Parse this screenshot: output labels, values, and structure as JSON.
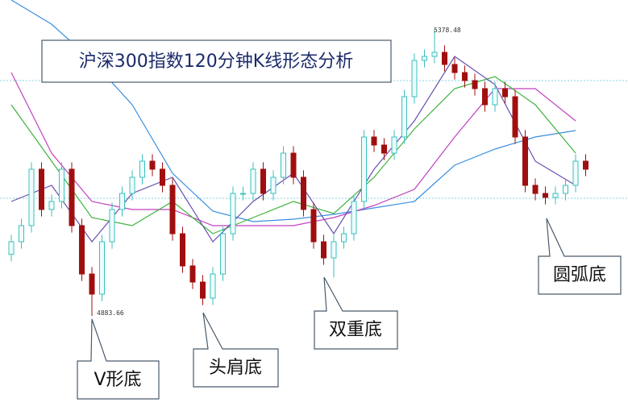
{
  "chart_data": {
    "type": "candlestick",
    "title": "沪深300指数120分钟K线形态分析",
    "ylim": [
      4712.2,
      5430.1
    ],
    "up_color": "#3bbfbf",
    "down_color": "#a00f0f",
    "open": [
      4990.0,
      5011.9,
      5039.8,
      5137.4,
      5067.7,
      5081.6,
      5137.4,
      5039.8,
      4956.1,
      4921.3,
      5011.9,
      5067.7,
      5095.5,
      5123.4,
      5151.3,
      5137.4,
      5109.5,
      5025.8,
      4970.1,
      4942.2,
      4914.3,
      4956.1,
      5025.8,
      5095.5,
      5095.5,
      5137.4,
      5095.5,
      5123.4,
      5165.2,
      5123.4,
      5067.7,
      5011.9,
      4984.0,
      5011.9,
      5025.8,
      5081.6,
      5193.1,
      5179.2,
      5165.2,
      5193.1,
      5262.8,
      5325.5,
      5332.5,
      5339.5,
      5318.6,
      5304.6,
      5290.7,
      5276.8,
      5248.9,
      5276.8,
      5262.8,
      5193.1,
      5109.5,
      5095.5,
      5088.6,
      5095.5,
      5109.5,
      5151.3
    ],
    "high": [
      5023.9,
      5051.8,
      5149.4,
      5149.4,
      5093.6,
      5149.4,
      5149.4,
      5051.8,
      4968.1,
      5023.9,
      5079.7,
      5107.5,
      5135.4,
      5163.3,
      5163.3,
      5149.4,
      5121.5,
      5037.8,
      4982.1,
      4954.2,
      4968.1,
      5037.8,
      5107.5,
      5107.5,
      5149.4,
      5149.4,
      5135.4,
      5177.2,
      5177.2,
      5135.4,
      5079.7,
      5023.9,
      5023.9,
      5037.8,
      5093.6,
      5205.1,
      5205.1,
      5191.2,
      5205.1,
      5274.8,
      5337.5,
      5344.5,
      5378.48,
      5351.5,
      5330.6,
      5316.6,
      5302.7,
      5288.8,
      5288.8,
      5288.8,
      5274.8,
      5205.1,
      5121.5,
      5107.5,
      5107.5,
      5121.5,
      5163.3,
      5163.3
    ],
    "low": [
      4978.0,
      4999.9,
      5027.8,
      5055.7,
      5055.7,
      5069.6,
      5027.8,
      4944.1,
      4883.66,
      4909.3,
      4999.9,
      5055.7,
      5083.5,
      5111.4,
      5125.4,
      5097.5,
      5013.8,
      4958.1,
      4930.2,
      4902.3,
      4902.3,
      4944.1,
      5013.8,
      5083.5,
      5083.5,
      5083.5,
      5083.5,
      5111.4,
      5111.4,
      5055.7,
      4999.9,
      4972.0,
      4950.0,
      4999.9,
      5013.8,
      5069.6,
      5167.2,
      5153.2,
      5153.2,
      5181.1,
      5250.8,
      5313.5,
      5320.5,
      5306.6,
      5292.6,
      5278.7,
      5264.8,
      5236.9,
      5236.9,
      5250.8,
      5181.1,
      5097.5,
      5083.5,
      5076.6,
      5076.6,
      5083.5,
      5097.5,
      5125.4
    ],
    "close": [
      5011.9,
      5039.8,
      5137.4,
      5067.7,
      5081.6,
      5137.4,
      5039.8,
      4956.1,
      4921.3,
      5011.9,
      5067.7,
      5095.5,
      5123.4,
      5151.3,
      5137.4,
      5109.5,
      5025.8,
      4970.1,
      4942.2,
      4914.3,
      4956.1,
      5025.8,
      5095.5,
      5095.5,
      5137.4,
      5095.5,
      5123.4,
      5165.2,
      5123.4,
      5067.7,
      5011.9,
      4984.0,
      5011.9,
      5025.8,
      5081.6,
      5193.1,
      5179.2,
      5165.2,
      5193.1,
      5262.8,
      5325.5,
      5332.5,
      5339.5,
      5318.6,
      5304.6,
      5290.7,
      5276.8,
      5248.9,
      5276.8,
      5262.8,
      5193.1,
      5109.5,
      5095.5,
      5088.6,
      5095.5,
      5109.5,
      5151.3,
      5137.4
    ],
    "lines": [
      {
        "color": "#3a8fe0",
        "x": [
          0,
          4,
          8,
          12,
          16,
          20,
          24,
          28,
          32,
          36,
          40,
          44,
          48,
          52,
          56
        ],
        "values": [
          5430.1,
          5388.3,
          5325.5,
          5248.9,
          5130.4,
          5064.9,
          5046.8,
          5050.9,
          5059.3,
          5070.4,
          5081.6,
          5144.3,
          5172.2,
          5193.1,
          5204.3
        ]
      },
      {
        "color": "#c040c0",
        "x": [
          0,
          4,
          8,
          12,
          16,
          20,
          24,
          28,
          32,
          36,
          40,
          44,
          48,
          52,
          56
        ],
        "values": [
          5304.6,
          5165.2,
          5081.6,
          5067.7,
          5067.7,
          5039.8,
          5039.8,
          5039.8,
          5053.7,
          5074.6,
          5102.5,
          5193.1,
          5276.8,
          5276.8,
          5221.0
        ]
      },
      {
        "color": "#3cb33c",
        "x": [
          0,
          4,
          8,
          12,
          16,
          20,
          24,
          28,
          32,
          36,
          40,
          44,
          48,
          52,
          56
        ],
        "values": [
          5248.9,
          5151.3,
          5053.7,
          5039.8,
          5081.6,
          5025.8,
          5053.7,
          5081.6,
          5060.7,
          5123.4,
          5207.1,
          5276.8,
          5297.7,
          5248.9,
          5165.2
        ]
      },
      {
        "color": "#6a4fb0",
        "x": [
          0,
          4,
          8,
          12,
          16,
          20,
          24,
          28,
          32,
          36,
          40,
          44,
          48,
          52,
          56
        ],
        "values": [
          5081.6,
          5109.5,
          5011.9,
          5095.5,
          5123.4,
          5011.9,
          5081.6,
          5130.4,
          5025.8,
          5137.4,
          5221.0,
          5332.5,
          5283.7,
          5151.3,
          5109.5
        ]
      }
    ],
    "annotations": [
      {
        "text": "V形底"
      },
      {
        "text": "头肩底"
      },
      {
        "text": "双重底"
      },
      {
        "text": "圆弧底"
      }
    ]
  }
}
